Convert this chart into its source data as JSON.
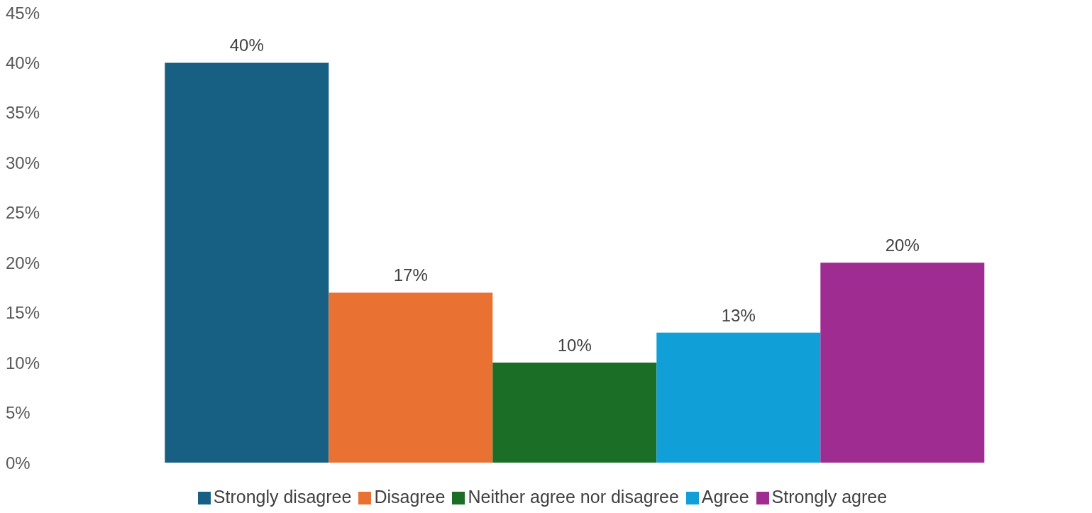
{
  "chart_data": {
    "type": "bar",
    "categories": [
      null
    ],
    "series": [
      {
        "name": "Strongly disagree",
        "color": "#176083",
        "values": [
          40
        ],
        "value_labels": [
          "40%"
        ]
      },
      {
        "name": "Disagree",
        "color": "#e97233",
        "values": [
          17
        ],
        "value_labels": [
          "17%"
        ]
      },
      {
        "name": "Neither agree nor disagree",
        "color": "#1b6e26",
        "values": [
          10
        ],
        "value_labels": [
          "10%"
        ]
      },
      {
        "name": "Agree",
        "color": "#119fd7",
        "values": [
          13
        ],
        "value_labels": [
          "13%"
        ]
      },
      {
        "name": "Strongly agree",
        "color": "#9e2c91",
        "values": [
          20
        ],
        "value_labels": [
          "20%"
        ]
      }
    ],
    "ylim": [
      0,
      45
    ],
    "yticks": [
      {
        "value": 0,
        "label": "0%"
      },
      {
        "value": 5,
        "label": "5%"
      },
      {
        "value": 10,
        "label": "10%"
      },
      {
        "value": 15,
        "label": "15%"
      },
      {
        "value": 20,
        "label": "20%"
      },
      {
        "value": 25,
        "label": "25%"
      },
      {
        "value": 30,
        "label": "30%"
      },
      {
        "value": 35,
        "label": "35%"
      },
      {
        "value": 40,
        "label": "40%"
      },
      {
        "value": 45,
        "label": "45%"
      }
    ],
    "grid": false,
    "legend": "bottom"
  }
}
